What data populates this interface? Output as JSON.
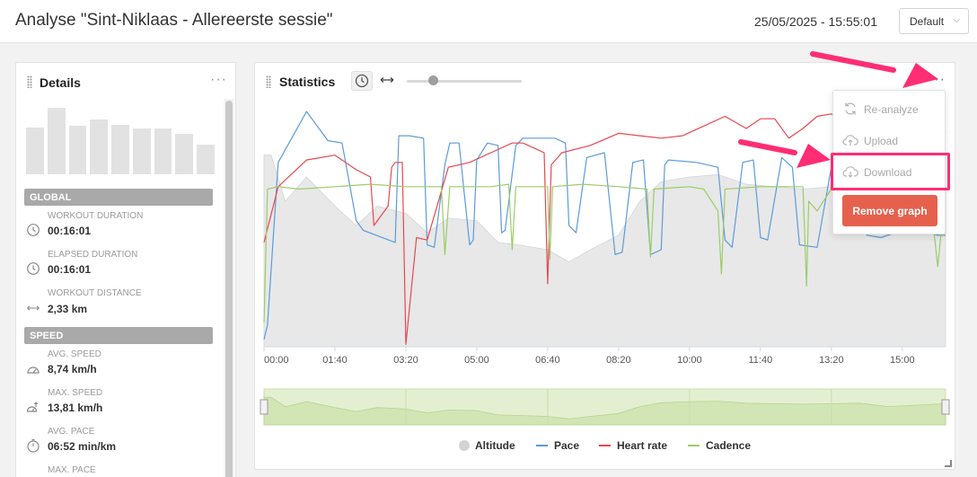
{
  "header": {
    "title": "Analyse \"Sint-Niklaas - Allereerste sessie\"",
    "datetime": "25/05/2025 - 15:55:01",
    "layout_select": "Default"
  },
  "details": {
    "title": "Details",
    "more_label": "···",
    "histogram": [
      52,
      74,
      54,
      61,
      55,
      51,
      51,
      45,
      33
    ],
    "sections": [
      {
        "header": "GLOBAL",
        "metrics": [
          {
            "label": "WORKOUT DURATION",
            "value": "00:16:01",
            "icon": "clock-icon"
          },
          {
            "label": "ELAPSED DURATION",
            "value": "00:16:01",
            "icon": "clock-icon"
          },
          {
            "label": "WORKOUT DISTANCE",
            "value": "2,33 km",
            "icon": "distance-arrows-icon"
          }
        ]
      },
      {
        "header": "SPEED",
        "metrics": [
          {
            "label": "AVG. SPEED",
            "value": "8,74 km/h",
            "icon": "speedometer-icon"
          },
          {
            "label": "MAX. SPEED",
            "value": "13,81 km/h",
            "icon": "max-speed-icon"
          },
          {
            "label": "AVG. PACE",
            "value": "06:52 min/km",
            "icon": "stopwatch-icon"
          },
          {
            "label": "MAX. PACE",
            "value": "",
            "icon": "stopwatch-icon"
          }
        ]
      }
    ]
  },
  "statistics": {
    "title": "Statistics",
    "more_label": "···",
    "zoom_slider_fraction": 0.2
  },
  "menu": {
    "items": [
      {
        "label": "Re-analyze",
        "icon": "refresh-icon"
      },
      {
        "label": "Upload",
        "icon": "cloud-upload-icon"
      },
      {
        "label": "Download",
        "icon": "cloud-download-icon"
      }
    ],
    "remove_label": "Remove graph"
  },
  "colors": {
    "altitude": "#e8e8e8",
    "pace": "#5b9bdc",
    "heart_rate": "#e8474f",
    "cadence": "#9ccc6a",
    "remove": "#e5614d",
    "highlight": "#ff2d73"
  },
  "chart_data": {
    "type": "line",
    "x_tick_labels": [
      "00:00",
      "01:40",
      "03:20",
      "05:00",
      "06:40",
      "08:20",
      "10:00",
      "11:40",
      "13:20",
      "15:00"
    ],
    "x_tick_seconds": [
      0,
      100,
      200,
      300,
      400,
      500,
      600,
      700,
      800,
      900
    ],
    "x_range": [
      0,
      961
    ],
    "y_range": [
      0,
      100
    ],
    "series": [
      {
        "name": "Altitude",
        "kind": "area",
        "x": [
          0,
          10,
          30,
          60,
          100,
          130,
          160,
          200,
          230,
          260,
          300,
          330,
          360,
          400,
          430,
          460,
          500,
          530,
          560,
          600,
          640,
          680,
          720,
          760,
          800,
          840,
          880,
          920,
          961
        ],
        "y": [
          79,
          79,
          60,
          70,
          58,
          50,
          58,
          55,
          47,
          53,
          52,
          43,
          42,
          40,
          35,
          40,
          46,
          60,
          68,
          70,
          71,
          67,
          66,
          65,
          66,
          67,
          60,
          63,
          66
        ]
      },
      {
        "name": "Pace",
        "kind": "line",
        "x": [
          0,
          5,
          20,
          60,
          90,
          110,
          130,
          140,
          185,
          190,
          205,
          225,
          230,
          240,
          255,
          262,
          275,
          290,
          295,
          300,
          315,
          330,
          335,
          340,
          355,
          365,
          410,
          425,
          430,
          440,
          455,
          480,
          495,
          505,
          520,
          535,
          545,
          560,
          565,
          570,
          610,
          640,
          650,
          660,
          675,
          690,
          700,
          710,
          730,
          745,
          755,
          780,
          800,
          820,
          850,
          870,
          910,
          950,
          961
        ],
        "y": [
          3,
          9,
          76,
          97,
          85,
          84,
          52,
          48,
          43,
          87,
          87,
          86,
          42,
          41,
          75,
          84,
          84,
          42,
          44,
          77,
          84,
          83,
          47,
          48,
          83,
          86,
          86,
          84,
          50,
          47,
          78,
          80,
          38,
          39,
          76,
          77,
          38,
          40,
          75,
          77,
          76,
          74,
          44,
          41,
          76,
          77,
          45,
          44,
          78,
          74,
          42,
          41,
          74,
          73,
          46,
          45,
          49,
          46,
          46
        ]
      },
      {
        "name": "Heart rate",
        "kind": "line",
        "x": [
          0,
          20,
          60,
          100,
          130,
          150,
          155,
          175,
          180,
          185,
          195,
          200,
          215,
          230,
          260,
          290,
          320,
          350,
          365,
          380,
          395,
          400,
          405,
          420,
          460,
          500,
          530,
          560,
          590,
          620,
          650,
          680,
          700,
          720,
          740,
          760,
          780,
          800,
          830,
          860,
          880,
          900,
          920,
          950,
          961
        ],
        "y": [
          43,
          66,
          77,
          79,
          73,
          70,
          50,
          58,
          74,
          76,
          76,
          1,
          45,
          44,
          74,
          76,
          80,
          84,
          84,
          82,
          80,
          26,
          75,
          80,
          83,
          88,
          87,
          86,
          87,
          91,
          95,
          90,
          94,
          94,
          86,
          90,
          95,
          96,
          91,
          82,
          82,
          86,
          93,
          87,
          89
        ]
      },
      {
        "name": "Cadence",
        "kind": "line",
        "x": [
          0,
          5,
          20,
          50,
          100,
          150,
          200,
          250,
          255,
          262,
          300,
          320,
          345,
          350,
          355,
          400,
          403,
          407,
          450,
          500,
          540,
          545,
          550,
          600,
          620,
          640,
          645,
          650,
          700,
          760,
          765,
          768,
          780,
          800,
          850,
          880,
          900,
          940,
          950,
          961
        ],
        "y": [
          10,
          65,
          66,
          65,
          66,
          67,
          66,
          66,
          38,
          66,
          66,
          66,
          67,
          40,
          66,
          66,
          36,
          66,
          67,
          66,
          65,
          37,
          65,
          66,
          65,
          56,
          30,
          65,
          66,
          66,
          25,
          60,
          56,
          65,
          66,
          65,
          55,
          60,
          33,
          66
        ]
      }
    ],
    "legend": [
      "Altitude",
      "Pace",
      "Heart rate",
      "Cadence"
    ],
    "legend_position": "bottom-center",
    "grid": false
  }
}
